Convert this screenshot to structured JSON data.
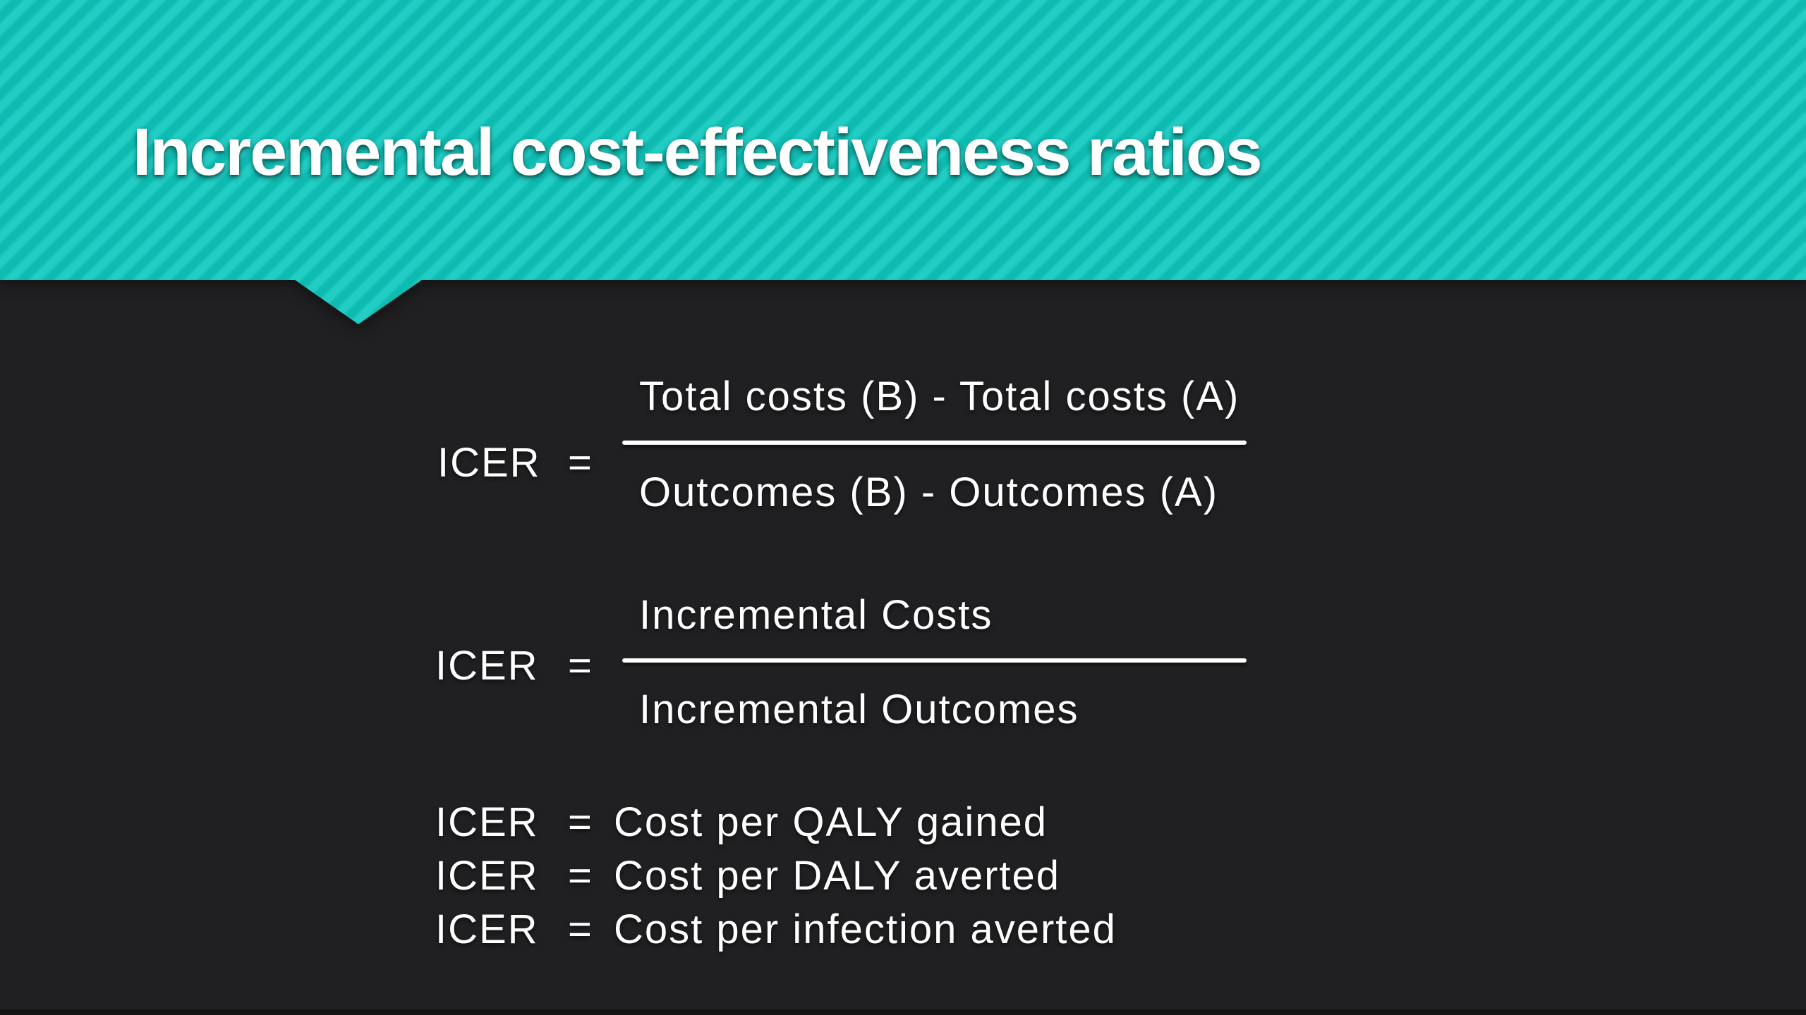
{
  "slide": {
    "title": "Incremental cost-effectiveness ratios",
    "formulas": [
      {
        "label": "ICER",
        "equals": "=",
        "numerator": "Total costs (B) -  Total costs (A)",
        "denominator": "Outcomes (B) - Outcomes (A)"
      },
      {
        "label": "ICER",
        "equals": "=",
        "numerator": "Incremental Costs",
        "denominator": "Incremental Outcomes"
      }
    ],
    "definitions": [
      {
        "label": "ICER",
        "equals": "=",
        "text": "Cost per QALY gained"
      },
      {
        "label": "ICER",
        "equals": "=",
        "text": "Cost per DALY averted"
      },
      {
        "label": "ICER",
        "equals": "=",
        "text": "Cost per infection averted"
      }
    ],
    "colors": {
      "teal": "#15C4BA",
      "teal_stripe_light": "#22CDC4",
      "teal_stripe_dark": "#0EBBB1",
      "background": "#202022",
      "text": "#FFFFFF"
    }
  }
}
